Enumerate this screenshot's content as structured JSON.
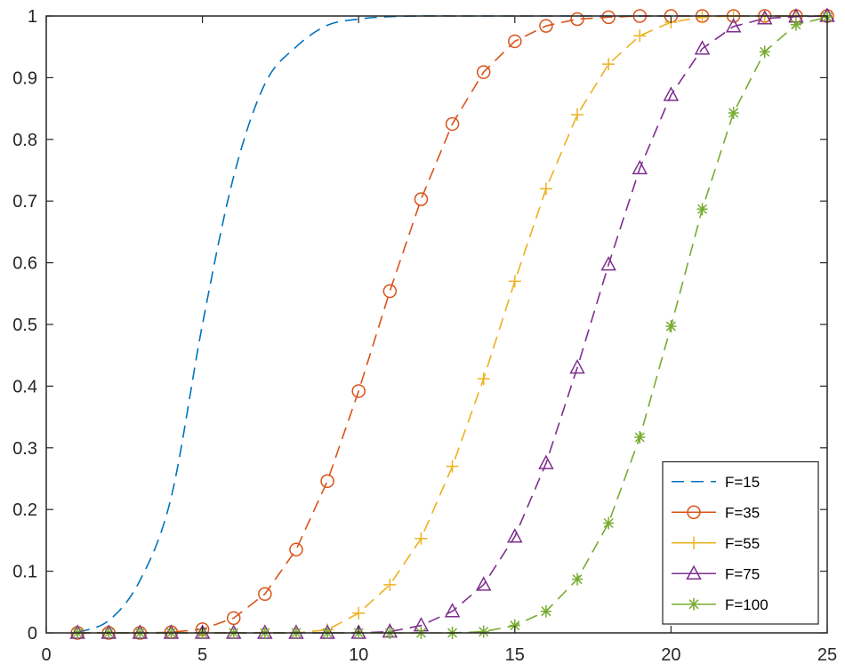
{
  "chart_data": {
    "type": "line",
    "title": "",
    "xlabel": "",
    "ylabel": "",
    "xlim": [
      0,
      25
    ],
    "ylim": [
      0,
      1
    ],
    "x_ticks": [
      0,
      5,
      10,
      15,
      20,
      25
    ],
    "y_ticks": [
      0,
      0.1,
      0.2,
      0.3,
      0.4,
      0.5,
      0.6,
      0.7,
      0.8,
      0.9,
      1
    ],
    "x_tick_labels": [
      "0",
      "5",
      "10",
      "15",
      "20",
      "25"
    ],
    "y_tick_labels": [
      "0",
      "0.1",
      "0.2",
      "0.3",
      "0.4",
      "0.5",
      "0.6",
      "0.7",
      "0.8",
      "0.9",
      "1"
    ],
    "grid": false,
    "legend_position": "bottom-right",
    "x": [
      1,
      2,
      3,
      4,
      5,
      6,
      7,
      8,
      9,
      10,
      11,
      12,
      13,
      14,
      15,
      16,
      17,
      18,
      19,
      20,
      21,
      22,
      23,
      24,
      25
    ],
    "series": [
      {
        "name": "F=15",
        "color": "#0072BD",
        "line": "dashed",
        "marker": "none",
        "values": [
          0.001,
          0.02,
          0.085,
          0.22,
          0.5,
          0.74,
          0.89,
          0.95,
          0.985,
          0.995,
          0.999,
          1,
          1,
          1,
          1,
          1,
          1,
          1,
          1,
          1,
          1,
          1,
          1,
          1,
          1
        ]
      },
      {
        "name": "F=35",
        "color": "#D95319",
        "line": "dashed",
        "marker": "circle",
        "values": [
          0,
          0,
          0,
          0.001,
          0.006,
          0.024,
          0.063,
          0.135,
          0.246,
          0.392,
          0.554,
          0.703,
          0.825,
          0.909,
          0.959,
          0.984,
          0.995,
          0.998,
          1,
          1,
          1,
          1,
          1,
          1,
          1
        ]
      },
      {
        "name": "F=55",
        "color": "#EDB120",
        "line": "dashed",
        "marker": "plus",
        "values": [
          0,
          0,
          0,
          0,
          0,
          0,
          0,
          0,
          0.005,
          0.032,
          0.078,
          0.153,
          0.27,
          0.412,
          0.57,
          0.72,
          0.84,
          0.922,
          0.968,
          0.99,
          0.998,
          1,
          1,
          1,
          1
        ]
      },
      {
        "name": "F=75",
        "color": "#7E2F8E",
        "line": "dashed",
        "marker": "triangle",
        "values": [
          0,
          0,
          0,
          0,
          0,
          0,
          0,
          0,
          0,
          0,
          0.002,
          0.012,
          0.035,
          0.078,
          0.156,
          0.275,
          0.43,
          0.597,
          0.753,
          0.872,
          0.947,
          0.983,
          0.996,
          0.999,
          1
        ]
      },
      {
        "name": "F=100",
        "color": "#77AC30",
        "line": "dashed",
        "marker": "asterisk",
        "values": [
          0,
          0,
          0,
          0,
          0,
          0,
          0,
          0,
          0,
          0,
          0,
          0,
          0,
          0.002,
          0.012,
          0.035,
          0.087,
          0.178,
          0.317,
          0.497,
          0.687,
          0.843,
          0.942,
          0.986,
          0.998
        ]
      }
    ]
  }
}
